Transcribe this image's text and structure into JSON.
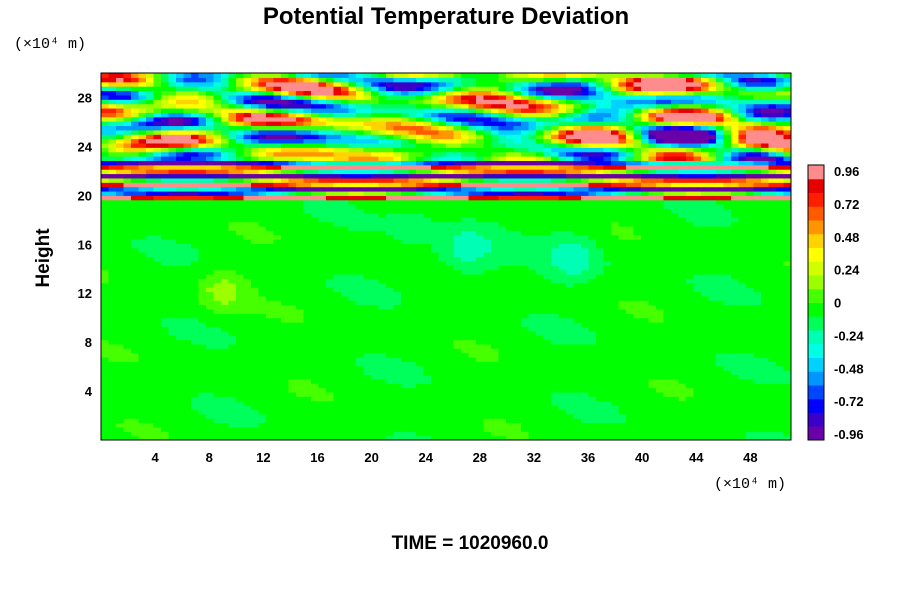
{
  "chart_data": {
    "type": "heatmap",
    "title": "Potential Temperature Deviation",
    "ylabel": "Height",
    "xlabel": "",
    "x_unit": "(×10⁴ m)",
    "y_unit": "(×10⁴ m)",
    "x_ticks": [
      4,
      8,
      12,
      16,
      20,
      24,
      28,
      32,
      36,
      40,
      44,
      48
    ],
    "y_ticks": [
      4,
      8,
      12,
      16,
      20,
      24,
      28
    ],
    "xlim": [
      0,
      51
    ],
    "ylim": [
      0,
      30
    ],
    "colorbar": {
      "ticks": [
        "0.96",
        "0.72",
        "0.48",
        "0.24",
        "0",
        "-0.24",
        "-0.48",
        "-0.72",
        "-0.96"
      ],
      "range": [
        -1.08,
        1.08
      ],
      "colors": [
        "#6a00a8",
        "#3a00c8",
        "#0000ff",
        "#0046ff",
        "#0096ff",
        "#00d2ff",
        "#00ffe6",
        "#00ffb4",
        "#00ff5a",
        "#00ff00",
        "#46ff00",
        "#9bff00",
        "#d2ff00",
        "#ffff00",
        "#ffd200",
        "#ff9600",
        "#ff5a00",
        "#ff1e00",
        "#e60000",
        "#ff8c8c"
      ]
    },
    "regions": [
      {
        "y_from": 0,
        "y_to": 19.5,
        "pattern": "near-zero deviation with weak eddies",
        "dominant_value": -0.05
      },
      {
        "y_from": 19.5,
        "y_to": 30,
        "pattern": "strong alternating bands",
        "value_range": [
          -1.08,
          1.08
        ]
      }
    ],
    "time_label": "TIME = 1020960.0",
    "grid": false
  }
}
